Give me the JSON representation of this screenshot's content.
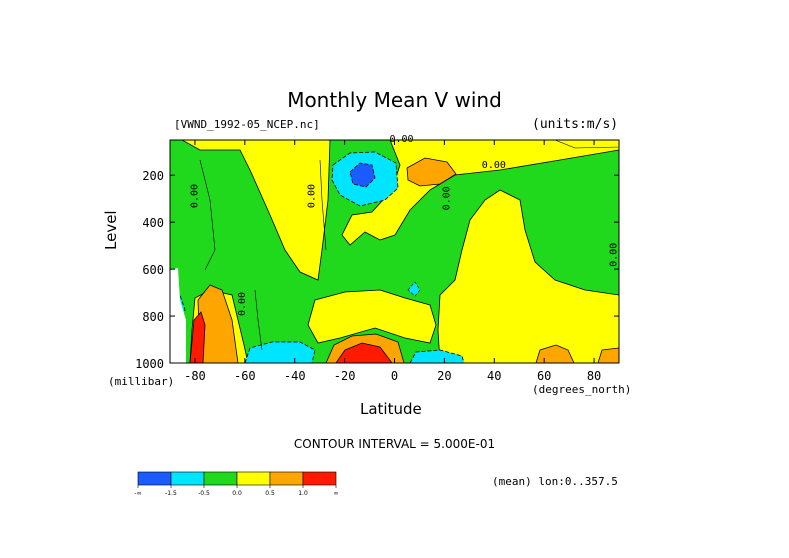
{
  "chart_data": {
    "type": "heatmap",
    "title": "Monthly Mean V wind",
    "dataset": "[VWND_1992-05_NCEP.nc]",
    "units": "(units:m/s)",
    "xlabel": "Latitude",
    "x_unit": "(degrees_north)",
    "ylabel": "Level",
    "y_unit": "(millibar)",
    "xlim": [
      -90,
      90
    ],
    "ylim": [
      1000,
      50
    ],
    "x_ticks": [
      -80,
      -60,
      -40,
      -20,
      0,
      20,
      40,
      60,
      80
    ],
    "y_ticks": [
      200,
      400,
      600,
      800,
      1000
    ],
    "contour_interval": "CONTOUR INTERVAL = 5.000E-01",
    "mean_info": "(mean) lon:0..357.5",
    "contour_labels": [
      "0.00",
      "0.00",
      "0.00",
      "0.00",
      "0.00",
      "0.00",
      "0.00"
    ],
    "colorbar": {
      "colors": [
        "#1a5cff",
        "#00e5ff",
        "#20d81c",
        "#ffff00",
        "#ffa500",
        "#ff1a00"
      ],
      "tick_labels": [
        "-∞",
        "-1.5",
        "-0.5",
        "0.0",
        "0.5",
        "1.0",
        "∞"
      ]
    },
    "regions": [
      {
        "level": "negative",
        "color": "#1a5cff",
        "center": [
          -14,
          180
        ]
      },
      {
        "level": "weak-negative",
        "color": "#00e5ff",
        "center": [
          -50,
          960
        ]
      },
      {
        "level": "weak-negative",
        "color": "#00e5ff",
        "center": [
          15,
          970
        ]
      },
      {
        "level": "neutral",
        "color": "#20d81c",
        "center": [
          -35,
          500
        ]
      },
      {
        "level": "weak-positive",
        "color": "#ffff00",
        "center": [
          45,
          450
        ]
      },
      {
        "level": "positive",
        "color": "#ffa500",
        "center": [
          10,
          150
        ]
      },
      {
        "level": "positive",
        "color": "#ffa500",
        "center": [
          -72,
          850
        ]
      },
      {
        "level": "strong-positive",
        "color": "#ff1a00",
        "center": [
          -12,
          980
        ]
      }
    ]
  }
}
